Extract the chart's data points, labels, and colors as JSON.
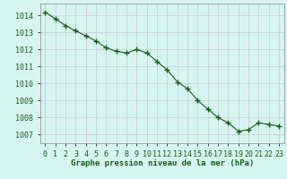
{
  "x": [
    0,
    1,
    2,
    3,
    4,
    5,
    6,
    7,
    8,
    9,
    10,
    11,
    12,
    13,
    14,
    15,
    16,
    17,
    18,
    19,
    20,
    21,
    22,
    23
  ],
  "y": [
    1014.2,
    1013.8,
    1013.4,
    1013.1,
    1012.8,
    1012.5,
    1012.1,
    1011.9,
    1011.8,
    1012.0,
    1011.8,
    1011.3,
    1010.8,
    1010.1,
    1009.7,
    1009.0,
    1008.5,
    1008.0,
    1007.7,
    1007.2,
    1007.3,
    1007.7,
    1007.6,
    1007.5
  ],
  "line_color": "#1a5c1a",
  "marker": "+",
  "marker_size": 5,
  "background_color": "#d6f5f0",
  "grid_color": "#c8c8d8",
  "ylabel_ticks": [
    1007,
    1008,
    1009,
    1010,
    1011,
    1012,
    1013,
    1014
  ],
  "xlabel": "Graphe pression niveau de la mer (hPa)",
  "ylim": [
    1006.5,
    1014.7
  ],
  "xlim": [
    -0.5,
    23.5
  ],
  "xlabel_color": "#1a5c1a",
  "tick_color": "#1a5c1a",
  "axis_label_fontsize": 6.5,
  "tick_fontsize": 6.0,
  "ytick_labels": [
    "1007",
    "1008",
    "1009",
    "1010",
    "1011",
    "1012",
    "1013",
    "1014"
  ]
}
